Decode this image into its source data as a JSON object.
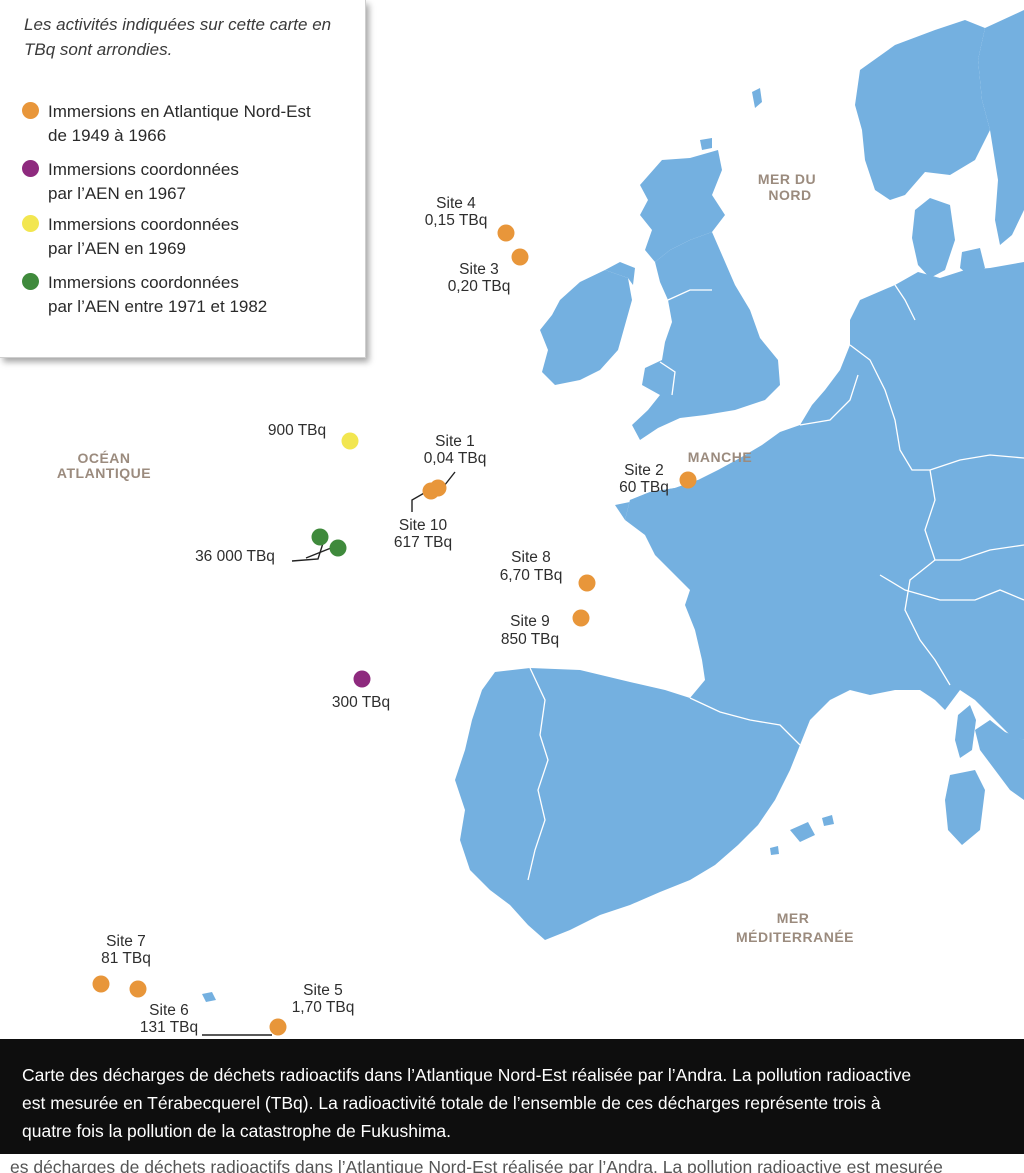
{
  "legend": {
    "note": "Les activités indiquées sur cette carte en TBq sont arrondies.",
    "items": [
      {
        "line1": "Immersions en Atlantique Nord-Est",
        "line2": "de 1949 à 1966",
        "color": "#e8963a"
      },
      {
        "line1": "Immersions coordonnées",
        "line2": "par l’AEN en 1967",
        "color": "#8e2a7e"
      },
      {
        "line1": "Immersions coordonnées",
        "line2": "par l’AEN en 1969",
        "color": "#f2e650"
      },
      {
        "line1": "Immersions coordonnées",
        "line2": "par l’AEN entre 1971 et 1982",
        "color": "#3f8a3c"
      }
    ]
  },
  "seas": {
    "ocean_line1": "OCÉAN",
    "ocean_line2": "ATLANTIQUE",
    "nord_line1": "MER DU",
    "nord_line2": "NORD",
    "manche": "MANCHE",
    "med_line1": "MER",
    "med_line2": "MÉDITERRANÉE"
  },
  "sites": {
    "site4": {
      "name": "Site 4",
      "value": "0,15 TBq"
    },
    "site3": {
      "name": "Site 3",
      "value": "0,20 TBq"
    },
    "site1": {
      "name": "Site 1",
      "value": "0,04 TBq"
    },
    "site2": {
      "name": "Site 2",
      "value": "60 TBq"
    },
    "site10": {
      "name": "Site 10",
      "value": "617 TBq"
    },
    "site8": {
      "name": "Site 8",
      "value": "6,70 TBq"
    },
    "site9": {
      "name": "Site 9",
      "value": "850 TBq"
    },
    "site7": {
      "name": "Site 7",
      "value": "81 TBq"
    },
    "site6": {
      "name": "Site 6",
      "value": "131 TBq"
    },
    "site5": {
      "name": "Site 5",
      "value": "1,70 TBq"
    },
    "aen1969": {
      "value": "900 TBq"
    },
    "aen1971": {
      "value": "36 000 TBq"
    },
    "aen1967": {
      "value": "300 TBq"
    }
  },
  "colors": {
    "land": "#74b0e0",
    "border": "#ffffff",
    "atlantic_ne": "#e8963a",
    "aen_1967": "#8e2a7e",
    "aen_1969": "#f2e650",
    "aen_1971_1982": "#3f8a3c"
  },
  "caption": "Carte des décharges de déchets radioactifs dans l’Atlantique Nord-Est réalisée par l’Andra. La pollution radioactive est mesurée en Térabecquerel (TBq). La radioactivité totale de l’ensemble de ces décharges représente trois à quatre fois la pollution de la catastrophe de Fukushima.",
  "caption_repeat": "es décharges de déchets radioactifs dans l’Atlantique Nord-Est réalisée par l’Andra. La pollution radioactive est mesurée"
}
